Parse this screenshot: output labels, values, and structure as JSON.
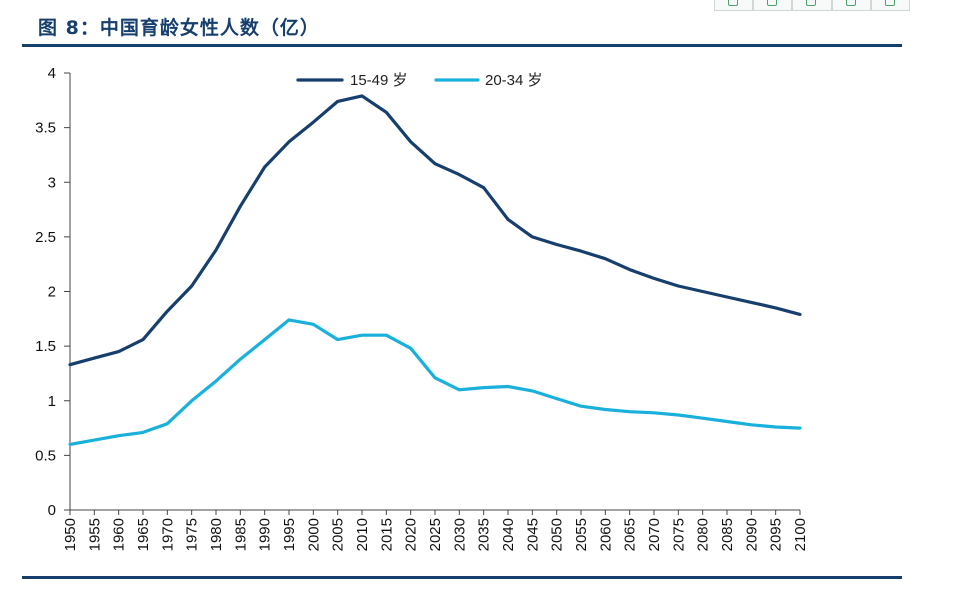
{
  "title": "图 8：中国育龄女性人数（亿）",
  "toolbar": {
    "icons": [
      "copy-icon",
      "translate-icon",
      "save-icon",
      "share-icon",
      "more-icon"
    ]
  },
  "colors": {
    "series_dark": "#173f6d",
    "series_light": "#19b0dc",
    "rule": "#173f6d",
    "title": "#163f6e"
  },
  "chart_data": {
    "type": "line",
    "title": "图 8：中国育龄女性人数（亿）",
    "xlabel": "",
    "ylabel": "",
    "ylim": [
      0,
      4
    ],
    "yticks": [
      "0",
      "0.5",
      "1",
      "1.5",
      "2",
      "2.5",
      "3",
      "3.5",
      "4"
    ],
    "x": [
      "1950",
      "1955",
      "1960",
      "1965",
      "1970",
      "1975",
      "1980",
      "1985",
      "1990",
      "1995",
      "2000",
      "2005",
      "2010",
      "2015",
      "2020",
      "2025",
      "2030",
      "2035",
      "2040",
      "2045",
      "2050",
      "2055",
      "2060",
      "2065",
      "2070",
      "2075",
      "2080",
      "2085",
      "2090",
      "2095",
      "2100"
    ],
    "grid": false,
    "legend_position": "top",
    "series": [
      {
        "name": "15-49 岁",
        "values": [
          1.33,
          1.39,
          1.45,
          1.56,
          1.82,
          2.05,
          2.38,
          2.78,
          3.14,
          3.37,
          3.55,
          3.74,
          3.79,
          3.64,
          3.37,
          3.17,
          3.07,
          2.95,
          2.66,
          2.5,
          2.43,
          2.37,
          2.3,
          2.2,
          2.12,
          2.05,
          2.0,
          1.95,
          1.9,
          1.85,
          1.79
        ]
      },
      {
        "name": "20-34 岁",
        "values": [
          0.6,
          0.64,
          0.68,
          0.71,
          0.79,
          1.0,
          1.18,
          1.38,
          1.56,
          1.74,
          1.7,
          1.56,
          1.6,
          1.6,
          1.48,
          1.21,
          1.1,
          1.12,
          1.13,
          1.09,
          1.02,
          0.95,
          0.92,
          0.9,
          0.89,
          0.87,
          0.84,
          0.81,
          0.78,
          0.76,
          0.75
        ]
      }
    ]
  }
}
